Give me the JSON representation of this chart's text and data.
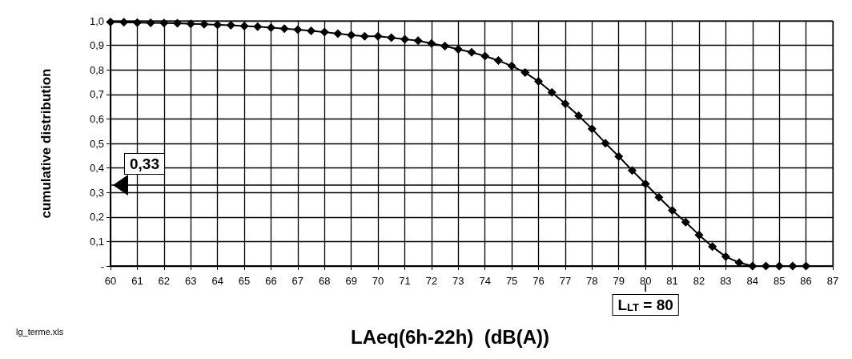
{
  "chart_data": {
    "type": "line",
    "xlabel": "LAeq(6h-22h)  (dB(A))",
    "ylabel": "cumulative distribution",
    "x": [
      60,
      60.5,
      61,
      61.5,
      62,
      62.5,
      63,
      63.5,
      64,
      64.5,
      65,
      65.5,
      66,
      66.5,
      67,
      67.5,
      68,
      68.5,
      69,
      69.5,
      70,
      70.5,
      71,
      71.5,
      72,
      72.5,
      73,
      73.5,
      74,
      74.5,
      75,
      75.5,
      76,
      76.5,
      77,
      77.5,
      78,
      78.5,
      79,
      79.5,
      80,
      80.5,
      81,
      81.5,
      82,
      82.5,
      83,
      83.5,
      84,
      84.5,
      85,
      85.5,
      86
    ],
    "series": [
      {
        "color": "#000000",
        "values": [
          0.995,
          0.994,
          0.993,
          0.992,
          0.991,
          0.99,
          0.988,
          0.986,
          0.984,
          0.982,
          0.979,
          0.976,
          0.972,
          0.968,
          0.964,
          0.959,
          0.954,
          0.948,
          0.942,
          0.937,
          0.937,
          0.931,
          0.925,
          0.919,
          0.908,
          0.897,
          0.884,
          0.872,
          0.856,
          0.838,
          0.816,
          0.789,
          0.753,
          0.708,
          0.662,
          0.613,
          0.56,
          0.501,
          0.447,
          0.39,
          0.335,
          0.28,
          0.227,
          0.179,
          0.127,
          0.079,
          0.038,
          0.014,
          0.0,
          0.0,
          0.0,
          0.0,
          0.0
        ]
      }
    ],
    "xlim": [
      60,
      87
    ],
    "xticks": [
      60,
      61,
      62,
      63,
      64,
      65,
      66,
      67,
      68,
      69,
      70,
      71,
      72,
      73,
      74,
      75,
      76,
      77,
      78,
      79,
      80,
      81,
      82,
      83,
      84,
      85,
      86,
      87
    ],
    "ylim": [
      0,
      1
    ],
    "yticks": [
      {
        "value": 0,
        "label": "-"
      },
      {
        "value": 0.1,
        "label": "0,1"
      },
      {
        "value": 0.2,
        "label": "0,2"
      },
      {
        "value": 0.3,
        "label": "0,3"
      },
      {
        "value": 0.4,
        "label": "0,4"
      },
      {
        "value": 0.5,
        "label": "0,5"
      },
      {
        "value": 0.6,
        "label": "0,6"
      },
      {
        "value": 0.7,
        "label": "0,7"
      },
      {
        "value": 0.8,
        "label": "0,8"
      },
      {
        "value": 0.9,
        "label": "0,9"
      },
      {
        "value": 1,
        "label": "1,0"
      }
    ],
    "grid": true,
    "marker": "diamond",
    "line_style": "solid",
    "ref_lines": [
      {
        "axis": "y",
        "value": 0.33,
        "label": "0,33"
      },
      {
        "axis": "x",
        "value": 80,
        "label": "L$_{LT}$ = 80"
      }
    ],
    "annotations": [
      "lg_terme.xls"
    ]
  }
}
